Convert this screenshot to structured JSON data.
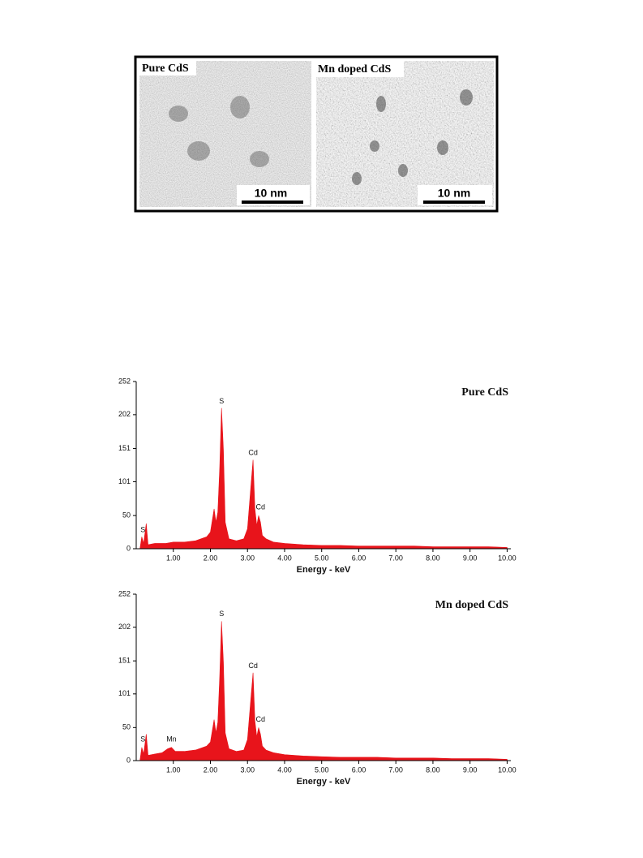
{
  "figure_panels": [
    {
      "label": "Pure CdS",
      "scale": "10 nm"
    },
    {
      "label": "Mn doped CdS",
      "scale": "10 nm"
    }
  ],
  "chart_data": [
    {
      "type": "area",
      "title": "Pure CdS",
      "x_label": "Energy - keV",
      "color": "#e8141b",
      "x": [
        0.1,
        0.15,
        0.2,
        0.27,
        0.32,
        0.5,
        0.8,
        1.0,
        1.3,
        1.6,
        1.9,
        2.0,
        2.1,
        2.15,
        2.2,
        2.25,
        2.3,
        2.35,
        2.4,
        2.5,
        2.7,
        2.9,
        3.0,
        3.1,
        3.15,
        3.2,
        3.25,
        3.3,
        3.35,
        3.4,
        3.5,
        3.7,
        4.0,
        4.5,
        5.0,
        5.5,
        6.0,
        6.5,
        7.0,
        7.5,
        8.0,
        8.5,
        9.0,
        9.5,
        10.0
      ],
      "values": [
        0,
        18,
        8,
        38,
        6,
        8,
        8,
        10,
        10,
        12,
        18,
        25,
        60,
        40,
        55,
        120,
        212,
        150,
        40,
        15,
        12,
        15,
        30,
        100,
        134,
        60,
        35,
        50,
        40,
        20,
        15,
        10,
        8,
        6,
        5,
        5,
        4,
        4,
        4,
        4,
        3,
        3,
        3,
        3,
        2
      ],
      "annotations": [
        {
          "text": "S",
          "x": 0.18,
          "y": 28
        },
        {
          "text": "S",
          "x": 2.3,
          "y": 222
        },
        {
          "text": "Cd",
          "x": 3.15,
          "y": 144
        },
        {
          "text": "Cd",
          "x": 3.35,
          "y": 62
        }
      ],
      "xlim": [
        0,
        10.1
      ],
      "xticks": [
        {
          "value": 1,
          "label": "1.00"
        },
        {
          "value": 2,
          "label": "2.00"
        },
        {
          "value": 3,
          "label": "3.00"
        },
        {
          "value": 4,
          "label": "4.00"
        },
        {
          "value": 5,
          "label": "5.00"
        },
        {
          "value": 6,
          "label": "6.00"
        },
        {
          "value": 7,
          "label": "7.00"
        },
        {
          "value": 8,
          "label": "8.00"
        },
        {
          "value": 9,
          "label": "9.00"
        },
        {
          "value": 10,
          "label": "10.00"
        }
      ],
      "ylim": [
        0,
        252
      ],
      "yticks": [
        0,
        50,
        101,
        151,
        202,
        252
      ]
    },
    {
      "type": "area",
      "title": "Mn doped CdS",
      "x_label": "Energy - keV",
      "color": "#e8141b",
      "x": [
        0.1,
        0.15,
        0.2,
        0.27,
        0.32,
        0.5,
        0.7,
        0.85,
        0.95,
        1.05,
        1.3,
        1.6,
        1.9,
        2.0,
        2.1,
        2.15,
        2.2,
        2.25,
        2.3,
        2.35,
        2.4,
        2.5,
        2.7,
        2.9,
        3.0,
        3.1,
        3.15,
        3.2,
        3.25,
        3.3,
        3.35,
        3.4,
        3.5,
        3.7,
        4.0,
        4.5,
        5.0,
        5.5,
        6.0,
        6.5,
        7.0,
        7.5,
        8.0,
        8.5,
        9.0,
        9.5,
        10.0
      ],
      "values": [
        0,
        20,
        10,
        40,
        8,
        10,
        12,
        18,
        20,
        14,
        14,
        16,
        22,
        28,
        62,
        42,
        58,
        125,
        211,
        150,
        42,
        18,
        14,
        16,
        32,
        100,
        133,
        60,
        36,
        50,
        40,
        22,
        16,
        12,
        9,
        7,
        6,
        5,
        5,
        5,
        4,
        4,
        4,
        3,
        3,
        3,
        2
      ],
      "annotations": [
        {
          "text": "S",
          "x": 0.18,
          "y": 32
        },
        {
          "text": "Mn",
          "x": 0.95,
          "y": 32
        },
        {
          "text": "S",
          "x": 2.3,
          "y": 222
        },
        {
          "text": "Cd",
          "x": 3.15,
          "y": 143
        },
        {
          "text": "Cd",
          "x": 3.35,
          "y": 62
        }
      ],
      "xlim": [
        0,
        10.1
      ],
      "xticks": [
        {
          "value": 1,
          "label": "1.00"
        },
        {
          "value": 2,
          "label": "2.00"
        },
        {
          "value": 3,
          "label": "3.00"
        },
        {
          "value": 4,
          "label": "4.00"
        },
        {
          "value": 5,
          "label": "5.00"
        },
        {
          "value": 6,
          "label": "6.00"
        },
        {
          "value": 7,
          "label": "7.00"
        },
        {
          "value": 8,
          "label": "8.00"
        },
        {
          "value": 9,
          "label": "9.00"
        },
        {
          "value": 10,
          "label": "10.00"
        }
      ],
      "ylim": [
        0,
        252
      ],
      "yticks": [
        0,
        50,
        101,
        151,
        202,
        252
      ]
    }
  ]
}
